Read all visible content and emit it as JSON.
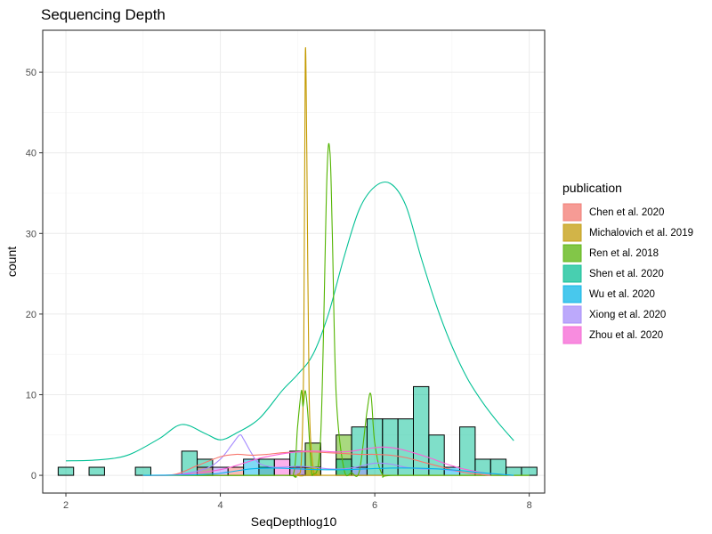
{
  "chart_data": {
    "type": "histogram",
    "title": "Sequencing Depth",
    "xlabel": "SeqDepthlog10",
    "ylabel": "count",
    "xlim": [
      1.7,
      8.2
    ],
    "ylim": [
      -2.2,
      55.2
    ],
    "x_ticks": [
      2,
      4,
      6,
      8
    ],
    "y_ticks": [
      0,
      10,
      20,
      30,
      40,
      50
    ],
    "bin_width": 0.2,
    "grid": true,
    "legend": {
      "title": "publication",
      "position": "right",
      "entries": [
        {
          "name": "Chen et al. 2020",
          "color": "#F8766D"
        },
        {
          "name": "Michalovich et al. 2019",
          "color": "#C49A00"
        },
        {
          "name": "Ren et al. 2018",
          "color": "#53B400"
        },
        {
          "name": "Shen et al. 2020",
          "color": "#00C094"
        },
        {
          "name": "Wu et al. 2020",
          "color": "#00B6EB"
        },
        {
          "name": "Xiong et al. 2020",
          "color": "#A58AFF"
        },
        {
          "name": "Zhou et al. 2020",
          "color": "#FB61D7"
        }
      ]
    },
    "bars": [
      {
        "x": 2.0,
        "count": 1,
        "series": "Shen et al. 2020"
      },
      {
        "x": 2.4,
        "count": 1,
        "series": "Shen et al. 2020"
      },
      {
        "x": 3.0,
        "count": 1,
        "series": "Shen et al. 2020"
      },
      {
        "x": 3.6,
        "count": 3,
        "series": "Shen et al. 2020"
      },
      {
        "x": 3.8,
        "count": 2,
        "series": "Shen et al. 2020"
      },
      {
        "x": 3.8,
        "count": 1,
        "series": "Chen et al. 2020"
      },
      {
        "x": 4.0,
        "count": 1,
        "series": "Xiong et al. 2020"
      },
      {
        "x": 4.2,
        "count": 1,
        "series": "Chen et al. 2020"
      },
      {
        "x": 4.4,
        "count": 2,
        "series": "Wu et al. 2020"
      },
      {
        "x": 4.6,
        "count": 1,
        "series": "Xiong et al. 2020"
      },
      {
        "x": 4.6,
        "count": 2,
        "series": "Shen et al. 2020"
      },
      {
        "x": 4.8,
        "count": 2,
        "series": "Zhou et al. 2020"
      },
      {
        "x": 5.0,
        "count": 3,
        "series": "Shen et al. 2020"
      },
      {
        "x": 5.0,
        "count": 1,
        "series": "Zhou et al. 2020"
      },
      {
        "x": 5.2,
        "count": 4,
        "series": "Ren et al. 2018"
      },
      {
        "x": 5.2,
        "count": 1,
        "series": "Michalovich et al. 2019"
      },
      {
        "x": 5.6,
        "count": 5,
        "series": "Ren et al. 2018"
      },
      {
        "x": 5.6,
        "count": 2,
        "series": "Shen et al. 2020"
      },
      {
        "x": 5.8,
        "count": 6,
        "series": "Shen et al. 2020"
      },
      {
        "x": 5.8,
        "count": 1,
        "series": "Xiong et al. 2020"
      },
      {
        "x": 6.0,
        "count": 7,
        "series": "Shen et al. 2020"
      },
      {
        "x": 6.2,
        "count": 7,
        "series": "Shen et al. 2020"
      },
      {
        "x": 6.4,
        "count": 7,
        "series": "Shen et al. 2020"
      },
      {
        "x": 6.6,
        "count": 11,
        "series": "Shen et al. 2020"
      },
      {
        "x": 6.8,
        "count": 5,
        "series": "Shen et al. 2020"
      },
      {
        "x": 7.0,
        "count": 1,
        "series": "Wu et al. 2020"
      },
      {
        "x": 7.2,
        "count": 6,
        "series": "Shen et al. 2020"
      },
      {
        "x": 7.4,
        "count": 2,
        "series": "Shen et al. 2020"
      },
      {
        "x": 7.6,
        "count": 2,
        "series": "Shen et al. 2020"
      },
      {
        "x": 7.8,
        "count": 1,
        "series": "Shen et al. 2020"
      },
      {
        "x": 8.0,
        "count": 1,
        "series": "Shen et al. 2020"
      }
    ],
    "density_series": [
      {
        "name": "Shen et al. 2020",
        "x": [
          2.0,
          2.4,
          2.8,
          3.2,
          3.5,
          3.8,
          4.0,
          4.2,
          4.5,
          4.8,
          5.0,
          5.2,
          5.4,
          5.6,
          5.8,
          6.0,
          6.2,
          6.4,
          6.6,
          6.8,
          7.0,
          7.2,
          7.4,
          7.6,
          7.8
        ],
        "y": [
          1.8,
          1.9,
          2.5,
          4.5,
          6.3,
          5.2,
          4.4,
          5.2,
          7.0,
          10.5,
          12.5,
          15.0,
          20.0,
          27.0,
          33.0,
          35.8,
          36.2,
          33.5,
          27.0,
          21.0,
          16.0,
          12.0,
          9.0,
          6.5,
          4.3
        ]
      },
      {
        "name": "Michalovich et al. 2019",
        "x": [
          3.0,
          4.9,
          5.0,
          5.05,
          5.08,
          5.1,
          5.12,
          5.15,
          5.2,
          5.25,
          5.3,
          8.0
        ],
        "y": [
          0,
          0,
          0.1,
          2,
          15,
          52,
          40,
          10,
          1,
          0.1,
          0,
          0
        ]
      },
      {
        "name": "Ren et al. 2018",
        "x": [
          3.0,
          4.8,
          4.95,
          5.0,
          5.05,
          5.07,
          5.1,
          5.13,
          5.17,
          5.2,
          5.3,
          5.38,
          5.42,
          5.45,
          5.5,
          5.6,
          5.7,
          5.8,
          5.9,
          5.95,
          6.0,
          6.1,
          6.3,
          8.0
        ],
        "y": [
          0,
          0,
          0.3,
          6,
          10.5,
          8.5,
          10.5,
          8,
          2,
          0.1,
          5,
          37,
          40,
          30,
          10,
          0.8,
          0.3,
          0.5,
          8,
          10,
          4,
          0.1,
          0,
          0
        ]
      },
      {
        "name": "Xiong et al. 2020",
        "x": [
          3.0,
          3.4,
          3.8,
          4.0,
          4.15,
          4.25,
          4.3,
          4.4,
          4.5,
          4.7,
          5.0,
          5.2,
          5.4,
          5.6,
          5.8,
          6.0,
          6.2,
          6.4,
          6.6,
          6.8,
          7.0,
          7.2,
          7.5
        ],
        "y": [
          0,
          0.05,
          0.8,
          2.0,
          3.8,
          5.0,
          4.5,
          2.8,
          1.5,
          1.0,
          1.1,
          1.0,
          0.8,
          0.8,
          1.1,
          1.5,
          1.4,
          1.0,
          0.8,
          0.8,
          0.6,
          0.3,
          0
        ]
      },
      {
        "name": "Chen et al. 2020",
        "x": [
          3.0,
          3.4,
          3.7,
          4.0,
          4.2,
          4.4,
          4.6,
          4.8,
          5.0,
          5.2,
          5.4,
          5.6,
          5.8,
          6.0,
          6.2,
          6.4,
          6.6,
          6.8,
          7.0,
          7.2,
          7.5
        ],
        "y": [
          0,
          0.1,
          1.2,
          2.3,
          2.6,
          2.5,
          2.6,
          2.8,
          2.9,
          2.9,
          2.8,
          2.7,
          2.6,
          2.6,
          2.5,
          2.2,
          1.7,
          1.2,
          0.7,
          0.3,
          0
        ]
      },
      {
        "name": "Zhou et al. 2020",
        "x": [
          3.0,
          3.5,
          4.0,
          4.3,
          4.5,
          4.7,
          4.9,
          5.1,
          5.3,
          5.5,
          5.7,
          5.9,
          6.1,
          6.3,
          6.5,
          6.7,
          6.9,
          7.1,
          7.3,
          7.5,
          7.8
        ],
        "y": [
          0,
          0.1,
          0.7,
          1.5,
          2.1,
          2.5,
          2.8,
          3.0,
          3.0,
          2.9,
          3.0,
          3.3,
          3.5,
          3.3,
          2.8,
          2.2,
          1.5,
          0.9,
          0.5,
          0.2,
          0
        ]
      },
      {
        "name": "Wu et al. 2020",
        "x": [
          3.0,
          3.8,
          4.1,
          4.4,
          4.7,
          5.0,
          5.3,
          5.6,
          5.9,
          6.2,
          6.5,
          6.8,
          7.1,
          7.4,
          7.8
        ],
        "y": [
          0,
          0.1,
          0.4,
          0.8,
          0.9,
          0.8,
          0.7,
          0.7,
          0.8,
          0.9,
          0.9,
          0.8,
          0.6,
          0.3,
          0
        ]
      }
    ]
  }
}
